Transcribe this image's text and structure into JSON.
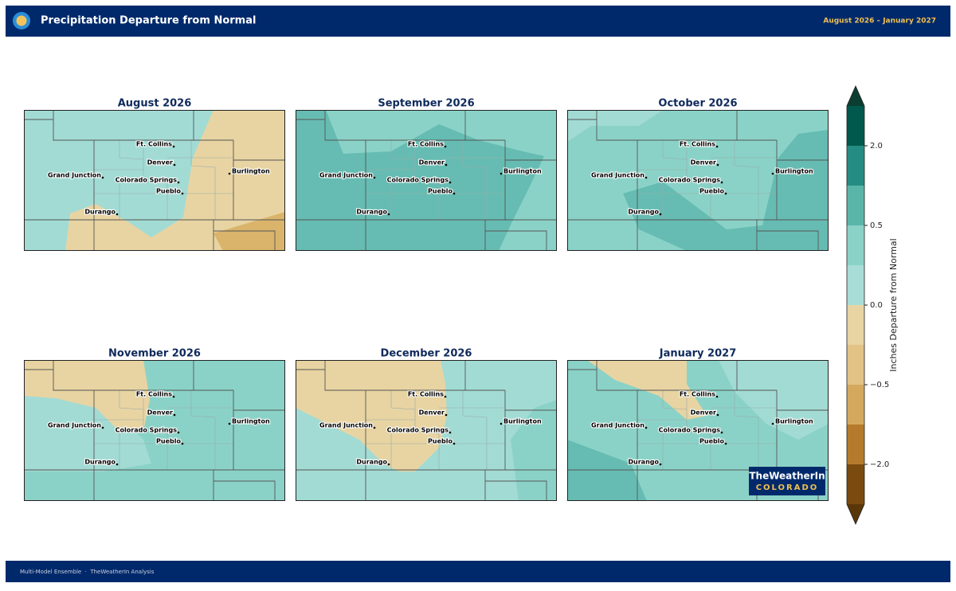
{
  "header": {
    "title": "Precipitation Departure from Normal",
    "date_range": "August 2026 – January 2027"
  },
  "panels": [
    {
      "title": "August 2026"
    },
    {
      "title": "September 2026"
    },
    {
      "title": "October 2026"
    },
    {
      "title": "November 2026"
    },
    {
      "title": "December 2026"
    },
    {
      "title": "January 2027"
    }
  ],
  "cities": [
    "Ft. Collins",
    "Denver",
    "Grand Junction",
    "Colorado Springs",
    "Burlington",
    "Pueblo",
    "Durango"
  ],
  "colorbar": {
    "label": "Inches Departure from Normal",
    "levels": [
      -3,
      -2,
      -1,
      -0.5,
      -0.25,
      0,
      0.25,
      0.5,
      1,
      2,
      3
    ],
    "colors": [
      "#7a4b0f",
      "#b57a2b",
      "#d4a95e",
      "#e2c285",
      "#e8d4a2",
      "#a7ddd6",
      "#8ad2c7",
      "#5ab5a9",
      "#258c83",
      "#01594d"
    ],
    "under_color": "#5a3709",
    "over_color": "#0b3d30",
    "ticks": [
      {
        "value": 2,
        "label": "2.0"
      },
      {
        "value": 0.5,
        "label": "0.5"
      },
      {
        "value": 0,
        "label": "0.0"
      },
      {
        "value": -0.5,
        "label": "−0.5"
      },
      {
        "value": -2,
        "label": "−2.0"
      }
    ]
  },
  "logo": {
    "line1": "TheWeatherIn",
    "line2": "COLORADO"
  },
  "footer": "Multi-Model Ensemble  ·  TheWeatherIn Analysis"
}
